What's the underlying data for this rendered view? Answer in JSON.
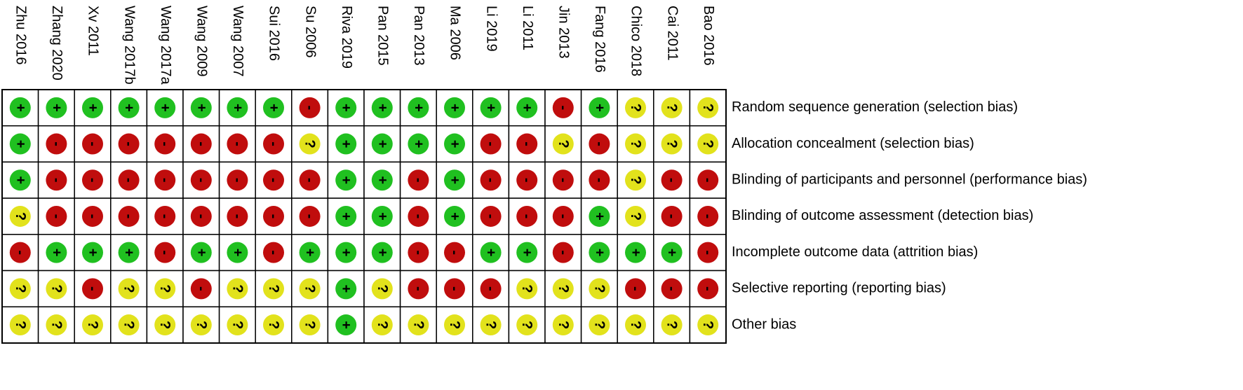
{
  "studies": [
    "Zhu 2016",
    "Zhang 2020",
    "Xv 2011",
    "Wang 2017b",
    "Wang 2017a",
    "Wang 2009",
    "Wang 2007",
    "Sui 2016",
    "Su 2006",
    "Riva 2019",
    "Pan 2015",
    "Pan 2013",
    "Ma 2006",
    "Li 2019",
    "Li 2011",
    "Jin 2013",
    "Fang 2016",
    "Chico 2018",
    "Cai 2011",
    "Bao 2016"
  ],
  "domains": [
    "Random sequence generation (selection bias)",
    "Allocation concealment (selection bias)",
    "Blinding of participants and personnel (performance bias)",
    "Blinding of outcome assessment (detection bias)",
    "Incomplete outcome data (attrition bias)",
    "Selective reporting (reporting bias)",
    "Other bias"
  ],
  "judgments": [
    {
      "symbol": "+",
      "color": "#20c020"
    },
    {
      "symbol": "-",
      "color": "#c00d0d"
    },
    {
      "symbol": "?",
      "color": "#e2e21c"
    }
  ],
  "grid": [
    [
      "+",
      "+",
      "+",
      "+",
      "+",
      "+",
      "+",
      "+",
      "-",
      "+",
      "+",
      "+",
      "+",
      "+",
      "+",
      "-",
      "+",
      "?",
      "?",
      "?"
    ],
    [
      "+",
      "-",
      "-",
      "-",
      "-",
      "-",
      "-",
      "-",
      "?",
      "+",
      "+",
      "+",
      "+",
      "-",
      "-",
      "?",
      "-",
      "?",
      "?",
      "?"
    ],
    [
      "+",
      "-",
      "-",
      "-",
      "-",
      "-",
      "-",
      "-",
      "-",
      "+",
      "+",
      "-",
      "+",
      "-",
      "-",
      "-",
      "-",
      "?",
      "-",
      "-"
    ],
    [
      "?",
      "-",
      "-",
      "-",
      "-",
      "-",
      "-",
      "-",
      "-",
      "+",
      "+",
      "-",
      "+",
      "-",
      "-",
      "-",
      "+",
      "?",
      "-",
      "-"
    ],
    [
      "-",
      "+",
      "+",
      "+",
      "-",
      "+",
      "+",
      "-",
      "+",
      "+",
      "+",
      "-",
      "-",
      "+",
      "+",
      "-",
      "+",
      "+",
      "+",
      "-"
    ],
    [
      "?",
      "?",
      "-",
      "?",
      "?",
      "-",
      "?",
      "?",
      "?",
      "+",
      "?",
      "-",
      "-",
      "-",
      "?",
      "?",
      "?",
      "-",
      "-",
      "-"
    ],
    [
      "?",
      "?",
      "?",
      "?",
      "?",
      "?",
      "?",
      "?",
      "?",
      "+",
      "?",
      "?",
      "?",
      "?",
      "?",
      "?",
      "?",
      "?",
      "?",
      "?"
    ]
  ]
}
